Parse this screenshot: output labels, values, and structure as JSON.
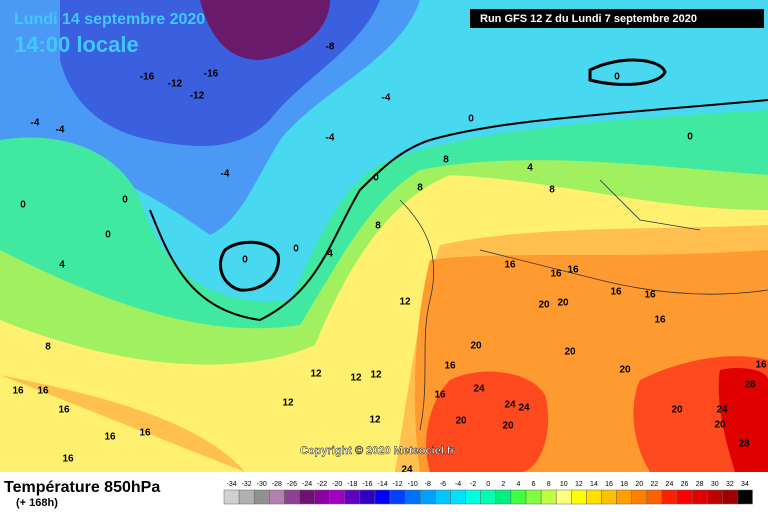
{
  "header": {
    "date": "Lundi 14 septembre 2020",
    "time": "14:00 locale",
    "run": "Run GFS 12 Z du Lundi 7 septembre 2020",
    "copyright": "Copyright © 2020 Meteociel.fr"
  },
  "footer": {
    "title": "Température 850hPa",
    "lead": "(+ 168h)"
  },
  "legend": {
    "ticks": [
      -34,
      -32,
      -30,
      -28,
      -26,
      -24,
      -22,
      -20,
      -18,
      -16,
      -14,
      -12,
      -10,
      -8,
      -6,
      -4,
      -2,
      0,
      2,
      4,
      6,
      8,
      10,
      12,
      14,
      16,
      18,
      20,
      22,
      24,
      26,
      28,
      30,
      32,
      34
    ],
    "colors": [
      "#d0d0d0",
      "#b0b0b0",
      "#909090",
      "#b080b0",
      "#904090",
      "#701070",
      "#8a00a0",
      "#a000c0",
      "#6000c0",
      "#3000c0",
      "#0000ff",
      "#0040ff",
      "#0070ff",
      "#00a0ff",
      "#00c8ff",
      "#00e0ff",
      "#00ffe0",
      "#00ffb0",
      "#00f080",
      "#40ff40",
      "#80ff40",
      "#c0ff40",
      "#ffff80",
      "#ffff00",
      "#ffe000",
      "#ffc000",
      "#ffa000",
      "#ff8000",
      "#ff6000",
      "#ff2000",
      "#ff0000",
      "#e00000",
      "#c00000",
      "#a00000",
      "#000000"
    ]
  },
  "contour_labels": [
    -8,
    -16,
    -12,
    -16,
    -12,
    -4,
    0,
    -4,
    -4,
    -4,
    -4,
    0,
    0,
    0,
    0,
    0,
    0,
    0,
    0,
    4,
    8,
    4,
    8,
    8,
    8,
    4,
    8,
    12,
    12,
    12,
    12,
    12,
    12,
    16,
    16,
    16,
    20,
    20,
    16,
    16,
    16,
    20,
    16,
    20,
    16,
    24,
    24,
    24,
    20,
    20,
    20,
    20,
    24,
    20,
    28,
    28,
    16,
    16,
    16,
    16,
    16,
    16,
    16,
    24
  ]
}
